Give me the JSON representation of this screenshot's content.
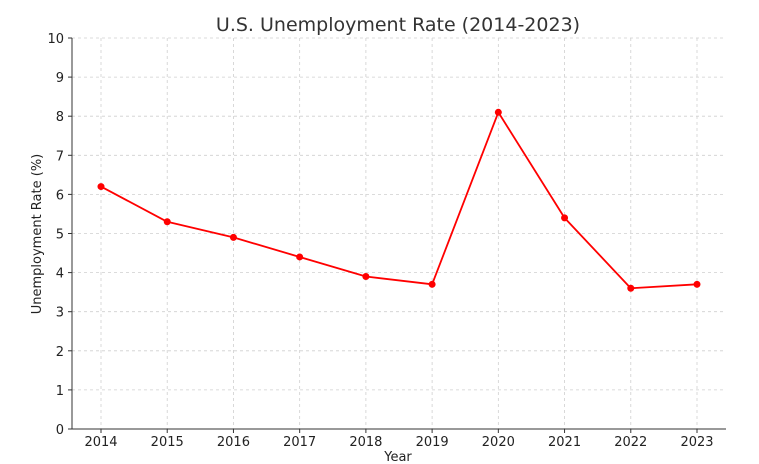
{
  "chart_data": {
    "type": "line",
    "title": "U.S. Unemployment Rate (2014-2023)",
    "xlabel": "Year",
    "ylabel": "Unemployment Rate (%)",
    "x": [
      "2014",
      "2015",
      "2016",
      "2017",
      "2018",
      "2019",
      "2020",
      "2021",
      "2022",
      "2023"
    ],
    "y_ticks": [
      "0",
      "1",
      "2",
      "3",
      "4",
      "5",
      "6",
      "7",
      "8",
      "9",
      "10"
    ],
    "ylim": [
      0,
      10
    ],
    "grid": true,
    "series": [
      {
        "values": [
          6.2,
          5.3,
          4.9,
          4.4,
          3.9,
          3.7,
          8.1,
          5.4,
          3.6,
          3.7
        ],
        "color": "#ff0000",
        "marker": "circle"
      }
    ]
  }
}
